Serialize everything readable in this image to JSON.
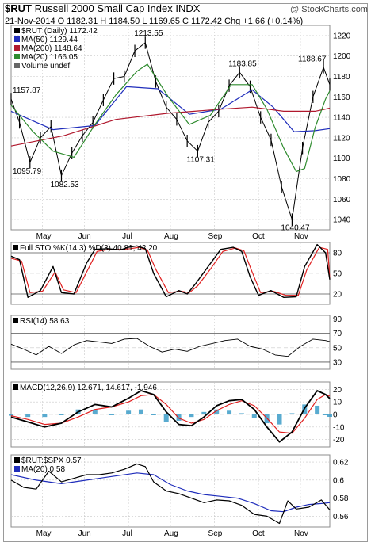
{
  "header": {
    "symbol": "$RUT",
    "name": "Russell 2000 Small Cap Index",
    "exchange": "INDX",
    "watermark": "@ StockCharts.com",
    "date": "21-Nov-2014",
    "ohlc": "O 1182.31  H 1184.50  L 1169.65  C 1172.42  Chg +1.66 (+0.14%)"
  },
  "colors": {
    "price": "#000000",
    "ma50": "#1f2dbb",
    "ma200": "#b0182d",
    "ma20": "#2e8b2e",
    "sto_k": "#000000",
    "sto_d": "#e02020",
    "hist": "#3c9cc8",
    "grid": "#c8c8c8",
    "ratio_ma": "#1f2dbb"
  },
  "chart_data": [
    {
      "type": "ohlc_line",
      "panel": "price",
      "title": "$RUT (Daily) 1172.42",
      "xlabels": [
        "May",
        "Jun",
        "Jul",
        "Aug",
        "Sep",
        "Oct",
        "Nov"
      ],
      "ylim": [
        1030,
        1230
      ],
      "yticks": [
        1040,
        1060,
        1080,
        1100,
        1120,
        1140,
        1160,
        1180,
        1200,
        1220
      ],
      "legend": [
        {
          "label": "$RUT (Daily) 1172.42",
          "color": "#000000"
        },
        {
          "label": "MA(50) 1129.44",
          "color": "#1f2dbb"
        },
        {
          "label": "MA(200) 1148.64",
          "color": "#b0182d"
        },
        {
          "label": "MA(20) 1166.05",
          "color": "#2e8b2e"
        },
        {
          "label": "Volume undef",
          "color": "#666666"
        }
      ],
      "annotations": [
        "1157.87",
        "1095.79",
        "1082.53",
        "1213.55",
        "1107.31",
        "1183.85",
        "1188.67",
        "1040.47"
      ],
      "series": [
        {
          "name": "$RUT",
          "x": [
            0,
            4,
            9,
            14,
            19,
            24,
            29,
            34,
            39,
            44,
            49,
            54,
            59,
            64,
            69,
            74,
            79,
            84,
            89,
            94,
            99,
            104,
            109,
            114,
            119,
            124,
            129,
            134,
            139,
            144,
            149,
            152
          ],
          "y": [
            1158,
            1135,
            1096,
            1120,
            1131,
            1083,
            1105,
            1122,
            1135,
            1157,
            1178,
            1180,
            1205,
            1213,
            1175,
            1150,
            1138,
            1117,
            1107,
            1135,
            1146,
            1171,
            1184,
            1170,
            1140,
            1118,
            1072,
            1040,
            1110,
            1160,
            1189,
            1172
          ]
        },
        {
          "name": "MA(50)",
          "x": [
            0,
            20,
            40,
            55,
            70,
            85,
            100,
            115,
            125,
            135,
            145,
            152
          ],
          "y": [
            1146,
            1128,
            1132,
            1170,
            1168,
            1143,
            1148,
            1167,
            1150,
            1126,
            1127,
            1129
          ]
        },
        {
          "name": "MA(200)",
          "x": [
            0,
            25,
            50,
            75,
            100,
            115,
            130,
            145,
            152
          ],
          "y": [
            1112,
            1122,
            1138,
            1144,
            1148,
            1150,
            1146,
            1146,
            1149
          ]
        },
        {
          "name": "MA(20)",
          "x": [
            0,
            10,
            20,
            30,
            40,
            50,
            60,
            65,
            75,
            85,
            95,
            105,
            115,
            122,
            130,
            136,
            140,
            145,
            150,
            152
          ],
          "y": [
            1152,
            1127,
            1107,
            1101,
            1133,
            1162,
            1185,
            1192,
            1160,
            1133,
            1142,
            1172,
            1172,
            1148,
            1110,
            1087,
            1090,
            1130,
            1158,
            1166
          ]
        }
      ]
    },
    {
      "type": "line",
      "panel": "sto",
      "title": "Full STO %K(14,3) %D(3) 40.81, 42.20",
      "ylim": [
        5,
        95
      ],
      "yticks": [
        20,
        50,
        80
      ],
      "series": [
        {
          "name": "%K",
          "x": [
            0,
            4,
            8,
            14,
            20,
            24,
            30,
            36,
            40,
            46,
            52,
            56,
            60,
            64,
            68,
            74,
            80,
            84,
            88,
            94,
            100,
            106,
            110,
            114,
            118,
            124,
            130,
            136,
            140,
            146,
            150,
            152
          ],
          "y": [
            75,
            70,
            15,
            25,
            60,
            22,
            20,
            65,
            85,
            86,
            84,
            88,
            90,
            86,
            50,
            16,
            25,
            20,
            35,
            60,
            85,
            88,
            82,
            45,
            18,
            25,
            15,
            16,
            60,
            92,
            80,
            41
          ]
        },
        {
          "name": "%D",
          "x": [
            0,
            5,
            9,
            15,
            21,
            25,
            31,
            37,
            41,
            47,
            53,
            57,
            61,
            65,
            69,
            75,
            81,
            85,
            89,
            95,
            101,
            107,
            111,
            115,
            119,
            125,
            131,
            137,
            141,
            147,
            151,
            152
          ],
          "y": [
            72,
            68,
            22,
            24,
            52,
            26,
            22,
            58,
            82,
            85,
            85,
            86,
            88,
            84,
            56,
            22,
            24,
            22,
            32,
            56,
            82,
            87,
            83,
            52,
            22,
            24,
            18,
            18,
            55,
            88,
            85,
            42
          ]
        }
      ]
    },
    {
      "type": "line",
      "panel": "rsi",
      "title": "RSI(14) 58.63",
      "ylim": [
        20,
        95
      ],
      "yticks": [
        30,
        50,
        70,
        90
      ],
      "series": [
        {
          "name": "RSI(14)",
          "x": [
            0,
            6,
            12,
            18,
            24,
            30,
            36,
            42,
            48,
            54,
            60,
            66,
            72,
            78,
            84,
            90,
            96,
            102,
            108,
            114,
            120,
            126,
            132,
            138,
            144,
            150,
            152
          ],
          "y": [
            55,
            48,
            40,
            52,
            42,
            54,
            60,
            58,
            56,
            62,
            63,
            52,
            44,
            48,
            45,
            52,
            56,
            60,
            62,
            52,
            48,
            40,
            38,
            52,
            62,
            60,
            58.6
          ]
        }
      ]
    },
    {
      "type": "line",
      "panel": "macd",
      "title": "MACD(12,26,9) 12.671, 14.617, -1.946",
      "ylim": [
        -26,
        26
      ],
      "yticks": [
        -20,
        -10,
        0,
        10,
        20
      ],
      "series": [
        {
          "name": "MACD",
          "x": [
            0,
            8,
            16,
            24,
            32,
            40,
            48,
            56,
            62,
            68,
            74,
            80,
            86,
            92,
            98,
            104,
            110,
            116,
            122,
            128,
            134,
            140,
            146,
            150,
            152
          ],
          "y": [
            -2,
            -6,
            -10,
            -7,
            2,
            8,
            6,
            13,
            19,
            16,
            2,
            -8,
            -9,
            -2,
            7,
            11,
            12,
            4,
            -10,
            -22,
            -14,
            5,
            19,
            16,
            12.7
          ]
        },
        {
          "name": "Signal",
          "x": [
            0,
            8,
            16,
            24,
            32,
            40,
            48,
            56,
            62,
            68,
            74,
            80,
            86,
            92,
            98,
            104,
            110,
            116,
            122,
            128,
            134,
            140,
            146,
            150,
            152
          ],
          "y": [
            -1,
            -4,
            -8,
            -7,
            -2,
            4,
            6,
            10,
            15,
            16,
            8,
            -3,
            -7,
            -4,
            3,
            8,
            11,
            7,
            -3,
            -14,
            -15,
            -3,
            12,
            16,
            14.6
          ]
        },
        {
          "name": "Histogram",
          "x": [
            0,
            8,
            16,
            24,
            32,
            40,
            48,
            56,
            62,
            68,
            74,
            80,
            86,
            92,
            98,
            104,
            110,
            116,
            122,
            128,
            134,
            140,
            146,
            150,
            152
          ],
          "y": [
            -1,
            -2,
            -2,
            0,
            4,
            4,
            0,
            3,
            4,
            0,
            -6,
            -5,
            -2,
            2,
            4,
            3,
            1,
            -3,
            -7,
            -8,
            1,
            8,
            7,
            0,
            -1.9
          ]
        }
      ]
    },
    {
      "type": "line",
      "panel": "ratio",
      "title": "$RUT:$SPX 0.57",
      "ylim": [
        0.548,
        0.628
      ],
      "yticks": [
        0.56,
        0.58,
        0.6,
        0.62
      ],
      "legend": [
        {
          "label": "$RUT:$SPX 0.57",
          "color": "#000000"
        },
        {
          "label": "MA(20) 0.58",
          "color": "#1f2dbb"
        }
      ],
      "series": [
        {
          "name": "$RUT:$SPX",
          "x": [
            0,
            6,
            12,
            18,
            24,
            30,
            36,
            42,
            48,
            54,
            60,
            64,
            68,
            74,
            80,
            86,
            92,
            98,
            104,
            110,
            116,
            122,
            128,
            132,
            136,
            142,
            148,
            152
          ],
          "y": [
            0.6,
            0.592,
            0.59,
            0.61,
            0.598,
            0.602,
            0.606,
            0.606,
            0.608,
            0.612,
            0.618,
            0.615,
            0.598,
            0.588,
            0.585,
            0.58,
            0.575,
            0.578,
            0.577,
            0.572,
            0.562,
            0.56,
            0.552,
            0.577,
            0.568,
            0.57,
            0.578,
            0.567
          ]
        },
        {
          "name": "MA(20)",
          "x": [
            0,
            12,
            24,
            36,
            48,
            60,
            68,
            76,
            84,
            92,
            100,
            108,
            116,
            124,
            130,
            136,
            142,
            148,
            152
          ],
          "y": [
            0.606,
            0.6,
            0.596,
            0.6,
            0.604,
            0.608,
            0.606,
            0.595,
            0.588,
            0.584,
            0.582,
            0.58,
            0.574,
            0.566,
            0.565,
            0.57,
            0.573,
            0.574,
            0.575
          ]
        }
      ]
    }
  ]
}
